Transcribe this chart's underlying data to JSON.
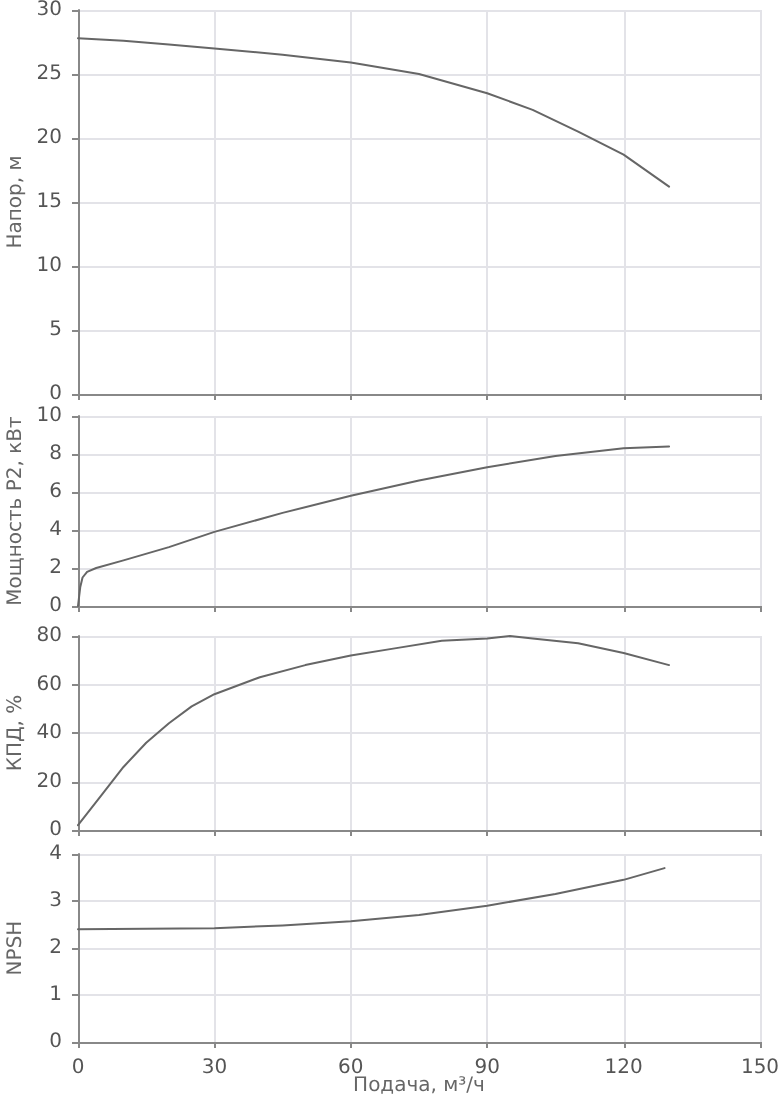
{
  "chart_data": [
    {
      "type": "line",
      "ylabel": "Напор, м",
      "xlim": [
        0,
        150
      ],
      "xticks": [
        0,
        30,
        60,
        90,
        120,
        150
      ],
      "ylim": [
        0,
        30
      ],
      "yticks": [
        0,
        5,
        10,
        15,
        20,
        25,
        30
      ],
      "grid": true,
      "tick_labels": "y",
      "marker": "none",
      "line_style": "solid",
      "series": [
        {
          "color": "#666666",
          "x": [
            0,
            10,
            20,
            30,
            45,
            60,
            75,
            90,
            100,
            110,
            120,
            130
          ],
          "values": [
            27.8,
            27.6,
            27.3,
            27.0,
            26.5,
            25.9,
            25.0,
            23.5,
            22.2,
            20.5,
            18.7,
            16.2
          ]
        }
      ]
    },
    {
      "type": "line",
      "ylabel": "Мощность P2, кВт",
      "xlim": [
        0,
        150
      ],
      "xticks": [
        0,
        30,
        60,
        90,
        120,
        150
      ],
      "ylim": [
        0,
        10
      ],
      "yticks": [
        0,
        2,
        4,
        6,
        8,
        10
      ],
      "grid": true,
      "tick_labels": "y",
      "marker": "none",
      "line_style": "solid",
      "series": [
        {
          "color": "#666666",
          "x": [
            0,
            0.5,
            1,
            2,
            4,
            10,
            20,
            30,
            45,
            60,
            75,
            90,
            105,
            120,
            130
          ],
          "values": [
            0,
            1.0,
            1.5,
            1.8,
            2.0,
            2.4,
            3.1,
            3.9,
            4.9,
            5.8,
            6.6,
            7.3,
            7.9,
            8.3,
            8.4
          ]
        }
      ]
    },
    {
      "type": "line",
      "ylabel": "КПД, %",
      "xlim": [
        0,
        150
      ],
      "xticks": [
        0,
        30,
        60,
        90,
        120,
        150
      ],
      "ylim": [
        0,
        80
      ],
      "yticks": [
        0,
        20,
        40,
        60,
        80
      ],
      "grid": true,
      "tick_labels": "y",
      "marker": "none",
      "line_style": "solid",
      "series": [
        {
          "color": "#666666",
          "x": [
            0,
            5,
            10,
            15,
            20,
            25,
            30,
            40,
            50,
            60,
            70,
            80,
            90,
            95,
            100,
            110,
            120,
            130
          ],
          "values": [
            2,
            14,
            26,
            36,
            44,
            51,
            56,
            63,
            68,
            72,
            75,
            78,
            79,
            80,
            79,
            77,
            73,
            68
          ]
        }
      ]
    },
    {
      "type": "line",
      "ylabel": "NPSH",
      "xlabel": "Подача, м³/ч",
      "xlim": [
        0,
        150
      ],
      "xticks": [
        0,
        30,
        60,
        90,
        120,
        150
      ],
      "ylim": [
        0,
        4
      ],
      "yticks": [
        0,
        1,
        2,
        3,
        4
      ],
      "grid": true,
      "marker": "none",
      "line_style": "solid",
      "series": [
        {
          "color": "#666666",
          "x": [
            0,
            30,
            45,
            60,
            75,
            90,
            105,
            120,
            129
          ],
          "values": [
            2.4,
            2.42,
            2.48,
            2.57,
            2.7,
            2.9,
            3.15,
            3.45,
            3.7
          ]
        }
      ]
    }
  ]
}
